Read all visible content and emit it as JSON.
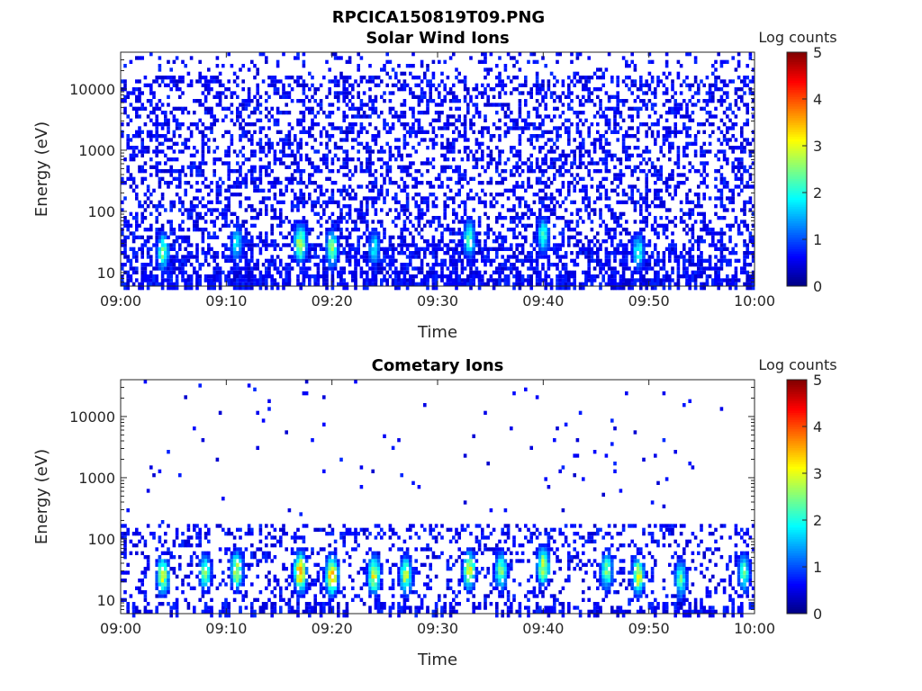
{
  "figure": {
    "title": "RPCICA150819T09.PNG"
  },
  "chart_data": [
    {
      "type": "heatmap",
      "title": "Solar Wind Ions",
      "xlabel": "Time",
      "ylabel": "Energy (eV)",
      "x_ticks": [
        "09:00",
        "09:10",
        "09:20",
        "09:30",
        "09:40",
        "09:50",
        "10:00"
      ],
      "xlim": [
        "09:00",
        "10:00"
      ],
      "y_scale": "log",
      "y_ticks": [
        "10",
        "100",
        "1000",
        "10000"
      ],
      "ylim": [
        6,
        40000
      ],
      "colorbar": {
        "label": "Log counts",
        "ticks": [
          "0",
          "1",
          "2",
          "3",
          "4",
          "5"
        ],
        "range": [
          0,
          5
        ],
        "colormap": "jet"
      },
      "peaks": [
        {
          "time": "09:04",
          "energy_eV": 22,
          "log_counts": 2.5
        },
        {
          "time": "09:11",
          "energy_eV": 30,
          "log_counts": 2.0
        },
        {
          "time": "09:17",
          "energy_eV": 30,
          "log_counts": 3.0
        },
        {
          "time": "09:20",
          "energy_eV": 25,
          "log_counts": 2.6
        },
        {
          "time": "09:24",
          "energy_eV": 25,
          "log_counts": 2.0
        },
        {
          "time": "09:33",
          "energy_eV": 35,
          "log_counts": 2.4
        },
        {
          "time": "09:40",
          "energy_eV": 40,
          "log_counts": 2.2
        },
        {
          "time": "09:49",
          "energy_eV": 22,
          "log_counts": 2.2
        }
      ]
    },
    {
      "type": "heatmap",
      "title": "Cometary Ions",
      "xlabel": "Time",
      "ylabel": "Energy (eV)",
      "x_ticks": [
        "09:00",
        "09:10",
        "09:20",
        "09:30",
        "09:40",
        "09:50",
        "10:00"
      ],
      "xlim": [
        "09:00",
        "10:00"
      ],
      "y_scale": "log",
      "y_ticks": [
        "10",
        "100",
        "1000",
        "10000"
      ],
      "ylim": [
        6,
        40000
      ],
      "colorbar": {
        "label": "Log counts",
        "ticks": [
          "0",
          "1",
          "2",
          "3",
          "4",
          "5"
        ],
        "range": [
          0,
          5
        ],
        "colormap": "jet"
      },
      "peaks": [
        {
          "time": "09:04",
          "energy_eV": 25,
          "log_counts": 3.0
        },
        {
          "time": "09:08",
          "energy_eV": 28,
          "log_counts": 2.6
        },
        {
          "time": "09:11",
          "energy_eV": 30,
          "log_counts": 3.0
        },
        {
          "time": "09:17",
          "energy_eV": 28,
          "log_counts": 3.8
        },
        {
          "time": "09:20",
          "energy_eV": 25,
          "log_counts": 3.6
        },
        {
          "time": "09:24",
          "energy_eV": 25,
          "log_counts": 3.2
        },
        {
          "time": "09:27",
          "energy_eV": 25,
          "log_counts": 2.8
        },
        {
          "time": "09:33",
          "energy_eV": 30,
          "log_counts": 3.2
        },
        {
          "time": "09:36",
          "energy_eV": 30,
          "log_counts": 2.6
        },
        {
          "time": "09:40",
          "energy_eV": 35,
          "log_counts": 3.0
        },
        {
          "time": "09:46",
          "energy_eV": 30,
          "log_counts": 2.6
        },
        {
          "time": "09:49",
          "energy_eV": 25,
          "log_counts": 3.2
        },
        {
          "time": "09:53",
          "energy_eV": 22,
          "log_counts": 2.4
        },
        {
          "time": "09:59",
          "energy_eV": 28,
          "log_counts": 2.4
        }
      ]
    }
  ]
}
